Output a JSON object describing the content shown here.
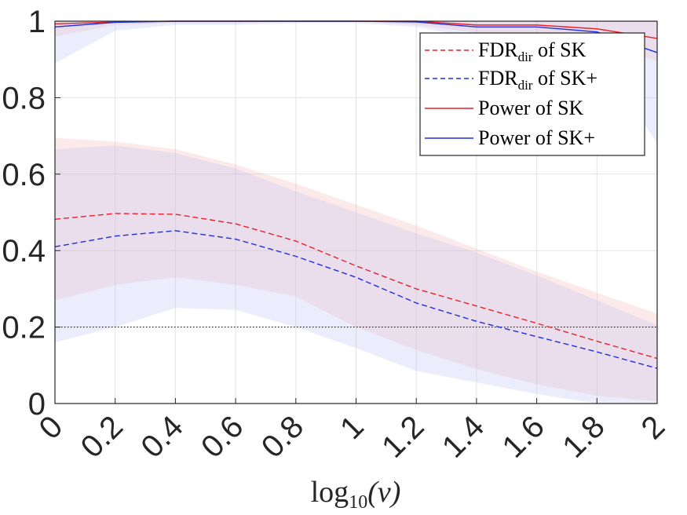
{
  "chart_data": {
    "type": "line",
    "title": "",
    "xlabel": "log10(ν)",
    "xlabel_parts": {
      "base": "log",
      "sub": "10",
      "arg": "(ν)"
    },
    "ylabel": "",
    "xlim": [
      0,
      2
    ],
    "ylim": [
      0,
      1
    ],
    "x": [
      0,
      0.2,
      0.4,
      0.6,
      0.8,
      1.0,
      1.2,
      1.4,
      1.6,
      1.8,
      2.0
    ],
    "xticks": [
      0,
      0.2,
      0.4,
      0.6,
      0.8,
      1,
      1.2,
      1.4,
      1.6,
      1.8,
      2
    ],
    "xtick_labels": [
      "0",
      "0.2",
      "0.4",
      "0.6",
      "0.8",
      "1",
      "1.2",
      "1.4",
      "1.6",
      "1.8",
      "2"
    ],
    "yticks": [
      0,
      0.2,
      0.4,
      0.6,
      0.8,
      1
    ],
    "ytick_labels": [
      "0",
      "0.2",
      "0.4",
      "0.6",
      "0.8",
      "1"
    ],
    "grid": true,
    "reference_line": {
      "y": 0.2,
      "style": "dotted",
      "color": "#000000"
    },
    "legend_position": "top-right",
    "series": [
      {
        "name": "FDR_dir of SK",
        "legend_main": "FDR",
        "legend_sub": "dir",
        "legend_rest": " of SK",
        "color": "#e8212a",
        "style": "dashed",
        "values": [
          0.482,
          0.497,
          0.495,
          0.47,
          0.425,
          0.36,
          0.3,
          0.255,
          0.21,
          0.163,
          0.118
        ],
        "band_lower": [
          0.27,
          0.31,
          0.33,
          0.31,
          0.28,
          0.2,
          0.14,
          0.09,
          0.05,
          0.02,
          0.005
        ],
        "band_upper": [
          0.695,
          0.685,
          0.665,
          0.625,
          0.575,
          0.52,
          0.465,
          0.405,
          0.345,
          0.29,
          0.235
        ],
        "band_color": "#f4b2b2"
      },
      {
        "name": "FDR_dir of SK+",
        "legend_main": "FDR",
        "legend_sub": "dir",
        "legend_rest": " of SK+",
        "color": "#1f2ee0",
        "style": "dashed",
        "values": [
          0.41,
          0.438,
          0.452,
          0.43,
          0.385,
          0.33,
          0.263,
          0.215,
          0.175,
          0.135,
          0.092
        ],
        "band_lower": [
          0.16,
          0.2,
          0.25,
          0.245,
          0.2,
          0.145,
          0.085,
          0.055,
          0.025,
          0.0,
          0.0
        ],
        "band_upper": [
          0.665,
          0.675,
          0.655,
          0.615,
          0.555,
          0.5,
          0.445,
          0.395,
          0.335,
          0.27,
          0.205
        ],
        "band_color": "#b9bdf6"
      },
      {
        "name": "Power of SK",
        "legend_main": "Power of SK",
        "color": "#e8212a",
        "style": "solid",
        "values": [
          0.993,
          0.998,
          1.0,
          1.0,
          1.0,
          1.0,
          1.0,
          0.99,
          0.99,
          0.98,
          0.955
        ],
        "band_lower": [
          0.96,
          0.99,
          0.995,
          0.995,
          1.0,
          1.0,
          0.99,
          0.97,
          0.965,
          0.95,
          0.895
        ],
        "band_upper": [
          1.0,
          1.0,
          1.0,
          1.0,
          1.0,
          1.0,
          1.0,
          1.0,
          1.0,
          1.0,
          1.0
        ],
        "band_color": "#f4b2b2"
      },
      {
        "name": "Power of SK+",
        "legend_main": "Power of SK+",
        "color": "#1f2ee0",
        "style": "solid",
        "values": [
          0.985,
          0.997,
          1.0,
          1.0,
          1.0,
          1.0,
          0.998,
          0.985,
          0.985,
          0.972,
          0.918
        ],
        "band_lower": [
          0.89,
          0.975,
          0.99,
          0.99,
          0.995,
          0.995,
          0.985,
          0.955,
          0.945,
          0.92,
          0.68
        ],
        "band_upper": [
          1.0,
          1.0,
          1.0,
          1.0,
          1.0,
          1.0,
          1.0,
          1.0,
          1.0,
          1.0,
          1.0
        ],
        "band_color": "#b9bdf6"
      }
    ]
  }
}
